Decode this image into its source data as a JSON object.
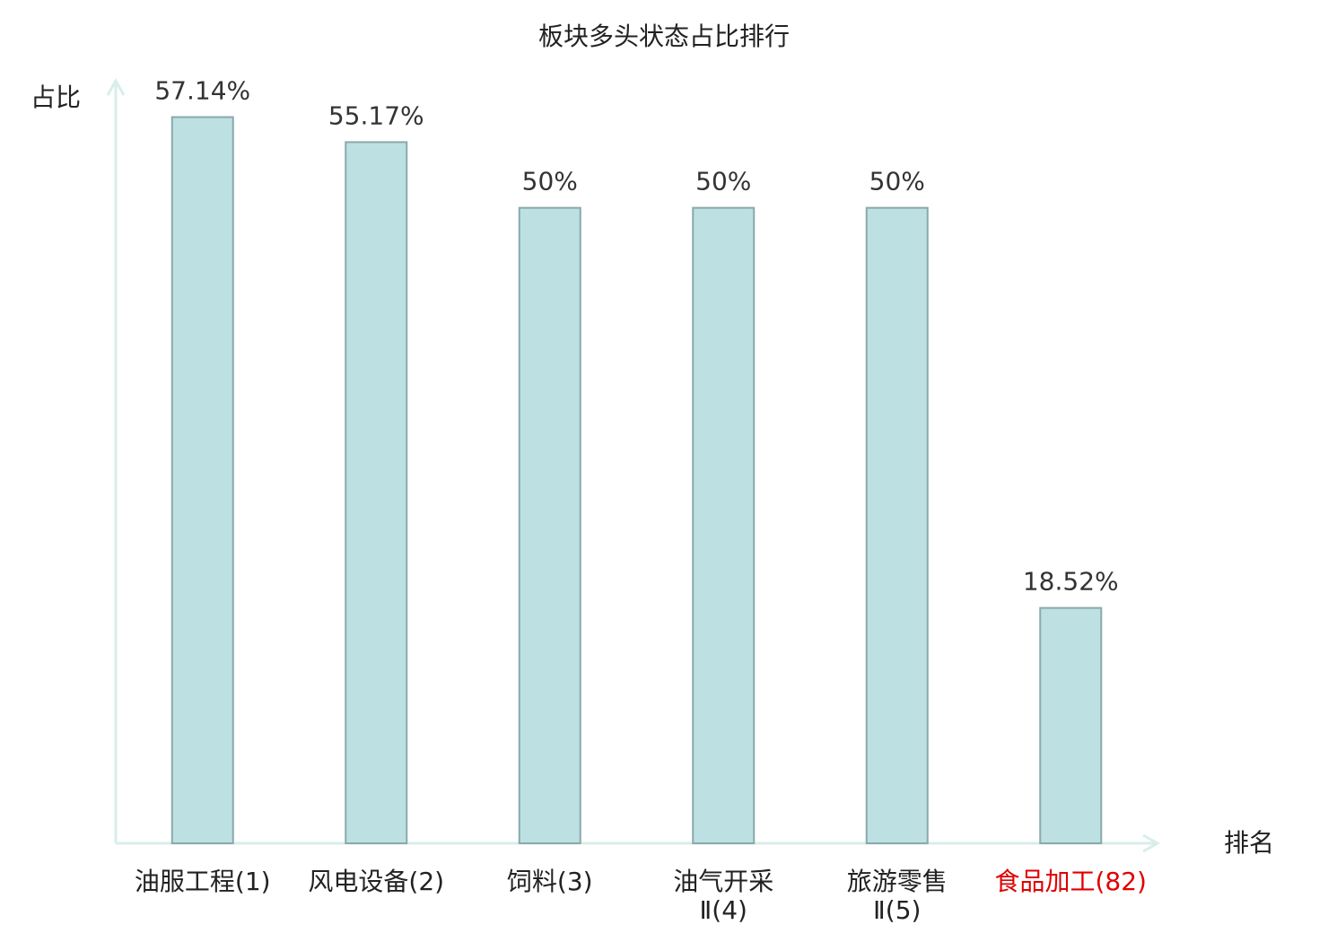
{
  "chart_data": {
    "type": "bar",
    "title": "板块多头状态占比排行",
    "y_label": "占比",
    "x_label": "排名",
    "categories": [
      [
        "油服工程(1)"
      ],
      [
        "风电设备(2)"
      ],
      [
        "饲料(3)"
      ],
      [
        "油气开采",
        "Ⅱ(4)"
      ],
      [
        "旅游零售",
        "Ⅱ(5)"
      ],
      [
        "食品加工(82)"
      ]
    ],
    "category_colors": [
      "#222222",
      "#222222",
      "#222222",
      "#222222",
      "#222222",
      "#e00000"
    ],
    "values": [
      57.14,
      55.17,
      50,
      50,
      50,
      18.52
    ],
    "value_labels": [
      "57.14%",
      "55.17%",
      "50%",
      "50%",
      "50%",
      "18.52%"
    ],
    "color": "#bde0e3",
    "edge_color": "#8aa9ab",
    "axis_color": "#d8eeea",
    "ylim": [
      0,
      60
    ]
  }
}
